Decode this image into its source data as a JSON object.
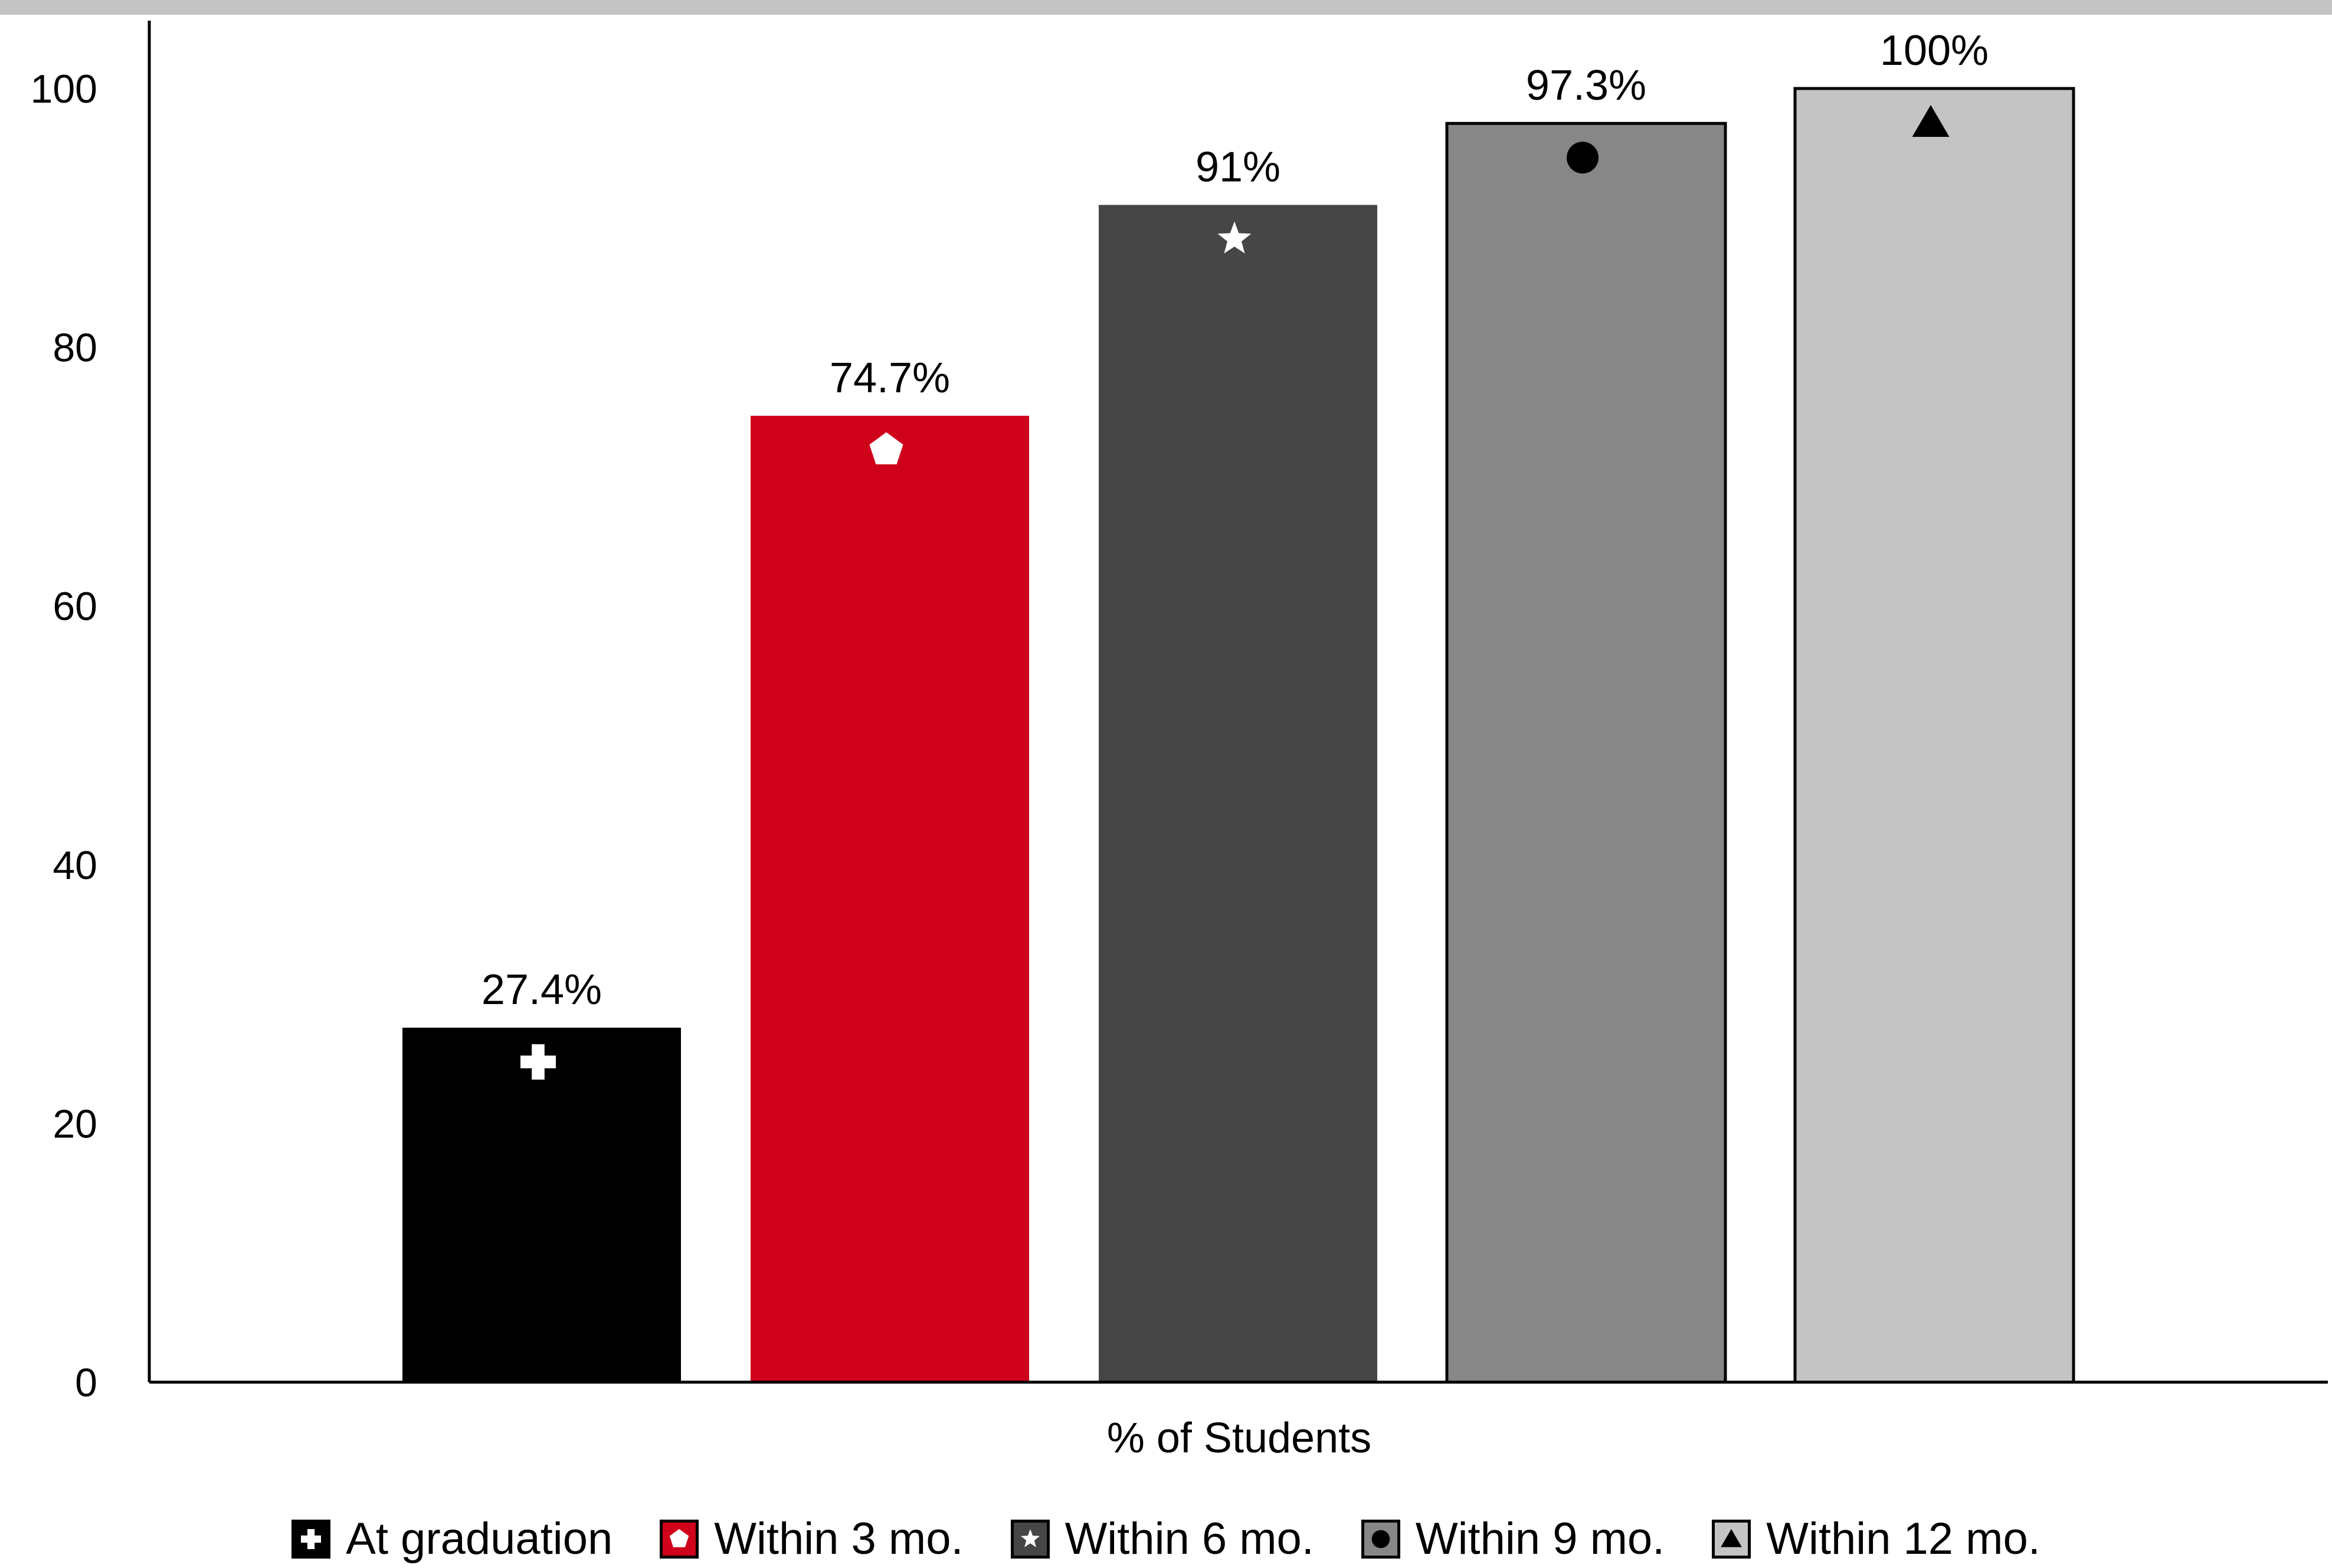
{
  "chart_data": {
    "type": "bar",
    "title": "",
    "xlabel": "% of Students",
    "ylabel": "",
    "ylim": [
      0,
      105
    ],
    "yticks": [
      0,
      20,
      40,
      60,
      80,
      100
    ],
    "grid": false,
    "legend_position": "bottom",
    "series": [
      {
        "name": "At graduation",
        "value": 27.4,
        "label": "27.4%",
        "color": "#000000",
        "marker": "cross",
        "marker_color": "#ffffff",
        "edge": false
      },
      {
        "name": "Within 3 mo.",
        "value": 74.7,
        "label": "74.7%",
        "color": "#d0021b",
        "marker": "pentagon",
        "marker_color": "#ffffff",
        "edge": false
      },
      {
        "name": "Within 6 mo.",
        "value": 91,
        "label": "91%",
        "color": "#464646",
        "marker": "star",
        "marker_color": "#ffffff",
        "edge": false
      },
      {
        "name": "Within 9 mo.",
        "value": 97.3,
        "label": "97.3%",
        "color": "#878787",
        "marker": "circle",
        "marker_color": "#000000",
        "edge": true
      },
      {
        "name": "Within 12 mo.",
        "value": 100,
        "label": "100%",
        "color": "#c4c4c4",
        "marker": "triangle",
        "marker_color": "#000000",
        "edge": true
      }
    ]
  }
}
